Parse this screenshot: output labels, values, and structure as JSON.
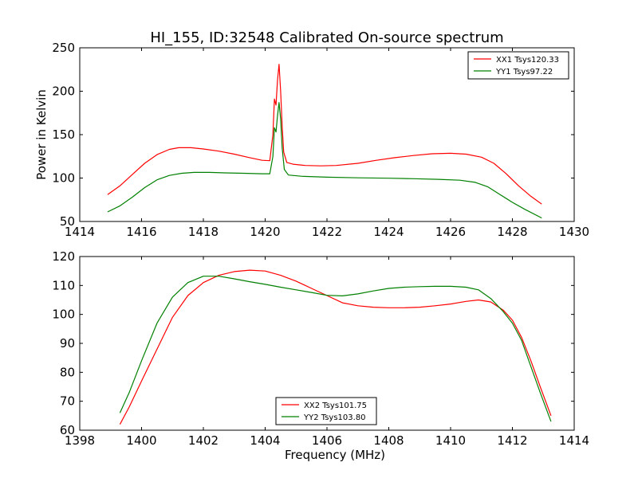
{
  "title": "HI_155, ID:32548 Calibrated On-source spectrum",
  "chart_data": [
    {
      "type": "line",
      "title": "HI_155, ID:32548 Calibrated On-source spectrum",
      "xlabel": "",
      "ylabel": "Power in Kelvin",
      "xlim": [
        1414,
        1430
      ],
      "ylim": [
        50,
        250
      ],
      "xticks": [
        1414,
        1416,
        1418,
        1420,
        1422,
        1424,
        1426,
        1428,
        1430
      ],
      "yticks": [
        50,
        100,
        150,
        200,
        250
      ],
      "legend_position": "top-right",
      "grid": false,
      "series": [
        {
          "name": "XX1 Tsys120.33",
          "color": "#ff0000",
          "points": [
            [
              1414.9,
              81
            ],
            [
              1415.3,
              91
            ],
            [
              1415.7,
              104
            ],
            [
              1416.1,
              117
            ],
            [
              1416.5,
              127
            ],
            [
              1416.9,
              133
            ],
            [
              1417.2,
              135
            ],
            [
              1417.6,
              135
            ],
            [
              1418.0,
              133.5
            ],
            [
              1418.5,
              131
            ],
            [
              1419.0,
              127.5
            ],
            [
              1419.5,
              123.5
            ],
            [
              1419.9,
              120.5
            ],
            [
              1420.15,
              120
            ],
            [
              1420.25,
              150
            ],
            [
              1420.3,
              191
            ],
            [
              1420.35,
              184
            ],
            [
              1420.4,
              213
            ],
            [
              1420.45,
              231
            ],
            [
              1420.5,
              200
            ],
            [
              1420.55,
              160
            ],
            [
              1420.6,
              130
            ],
            [
              1420.7,
              118
            ],
            [
              1420.9,
              116
            ],
            [
              1421.3,
              114.5
            ],
            [
              1421.8,
              114
            ],
            [
              1422.3,
              114.5
            ],
            [
              1423.0,
              117
            ],
            [
              1423.6,
              120.5
            ],
            [
              1424.2,
              123.5
            ],
            [
              1424.8,
              126
            ],
            [
              1425.4,
              128
            ],
            [
              1426.0,
              128.5
            ],
            [
              1426.5,
              127.5
            ],
            [
              1427.0,
              124
            ],
            [
              1427.4,
              117
            ],
            [
              1427.8,
              105
            ],
            [
              1428.2,
              91
            ],
            [
              1428.6,
              79
            ],
            [
              1428.95,
              70
            ]
          ]
        },
        {
          "name": "YY1 Tsys97.22",
          "color": "#008000",
          "points": [
            [
              1414.9,
              61
            ],
            [
              1415.3,
              68
            ],
            [
              1415.7,
              78
            ],
            [
              1416.1,
              89
            ],
            [
              1416.5,
              98
            ],
            [
              1416.9,
              103
            ],
            [
              1417.3,
              105.5
            ],
            [
              1417.7,
              106.5
            ],
            [
              1418.2,
              106.5
            ],
            [
              1418.7,
              106
            ],
            [
              1419.3,
              105.5
            ],
            [
              1419.9,
              105
            ],
            [
              1420.15,
              105
            ],
            [
              1420.25,
              125
            ],
            [
              1420.3,
              158
            ],
            [
              1420.35,
              153
            ],
            [
              1420.4,
              172
            ],
            [
              1420.45,
              187
            ],
            [
              1420.5,
              168
            ],
            [
              1420.55,
              135
            ],
            [
              1420.62,
              110
            ],
            [
              1420.75,
              103.5
            ],
            [
              1421.2,
              102
            ],
            [
              1422.0,
              101
            ],
            [
              1423.0,
              100.3
            ],
            [
              1424.0,
              99.8
            ],
            [
              1424.8,
              99.3
            ],
            [
              1425.6,
              98.5
            ],
            [
              1426.3,
              97.5
            ],
            [
              1426.8,
              95
            ],
            [
              1427.2,
              90
            ],
            [
              1427.6,
              81
            ],
            [
              1428.0,
              72
            ],
            [
              1428.4,
              64
            ],
            [
              1428.95,
              54
            ]
          ]
        }
      ]
    },
    {
      "type": "line",
      "title": "",
      "xlabel": "Frequency (MHz)",
      "ylabel": "",
      "xlim": [
        1398,
        1414
      ],
      "ylim": [
        60,
        120
      ],
      "xticks": [
        1398,
        1400,
        1402,
        1404,
        1406,
        1408,
        1410,
        1412,
        1414
      ],
      "yticks": [
        60,
        70,
        80,
        90,
        100,
        110,
        120
      ],
      "legend_position": "bottom-center",
      "grid": false,
      "series": [
        {
          "name": "XX2 Tsys101.75",
          "color": "#ff0000",
          "points": [
            [
              1399.3,
              62
            ],
            [
              1399.6,
              68
            ],
            [
              1400.0,
              77
            ],
            [
              1400.5,
              88
            ],
            [
              1401.0,
              99
            ],
            [
              1401.5,
              106.5
            ],
            [
              1402.0,
              111
            ],
            [
              1402.5,
              113.5
            ],
            [
              1403.0,
              114.8
            ],
            [
              1403.5,
              115.3
            ],
            [
              1404.0,
              115
            ],
            [
              1404.5,
              113.5
            ],
            [
              1405.0,
              111.5
            ],
            [
              1405.5,
              109
            ],
            [
              1406.0,
              106.5
            ],
            [
              1406.5,
              104
            ],
            [
              1407.0,
              103
            ],
            [
              1407.5,
              102.5
            ],
            [
              1408.0,
              102.3
            ],
            [
              1408.5,
              102.3
            ],
            [
              1409.0,
              102.5
            ],
            [
              1409.5,
              103
            ],
            [
              1410.0,
              103.6
            ],
            [
              1410.5,
              104.5
            ],
            [
              1410.9,
              105
            ],
            [
              1411.3,
              104.3
            ],
            [
              1411.7,
              101.5
            ],
            [
              1412.0,
              98
            ],
            [
              1412.3,
              92
            ],
            [
              1412.6,
              84
            ],
            [
              1412.9,
              75
            ],
            [
              1413.25,
              65
            ]
          ]
        },
        {
          "name": "YY2 Tsys103.80",
          "color": "#008000",
          "points": [
            [
              1399.3,
              66
            ],
            [
              1399.6,
              73
            ],
            [
              1400.0,
              84
            ],
            [
              1400.5,
              97
            ],
            [
              1401.0,
              106
            ],
            [
              1401.5,
              111
            ],
            [
              1402.0,
              113.2
            ],
            [
              1402.5,
              113.2
            ],
            [
              1403.0,
              112.3
            ],
            [
              1403.5,
              111.3
            ],
            [
              1404.0,
              110.4
            ],
            [
              1404.5,
              109.4
            ],
            [
              1405.0,
              108.5
            ],
            [
              1405.5,
              107.6
            ],
            [
              1406.0,
              106.6
            ],
            [
              1406.5,
              106.4
            ],
            [
              1407.0,
              107.1
            ],
            [
              1407.5,
              108.1
            ],
            [
              1408.0,
              109
            ],
            [
              1408.5,
              109.4
            ],
            [
              1409.0,
              109.6
            ],
            [
              1409.5,
              109.7
            ],
            [
              1410.0,
              109.7
            ],
            [
              1410.5,
              109.4
            ],
            [
              1410.9,
              108.5
            ],
            [
              1411.3,
              105.5
            ],
            [
              1411.7,
              101
            ],
            [
              1412.0,
              97
            ],
            [
              1412.3,
              91
            ],
            [
              1412.6,
              82
            ],
            [
              1412.9,
              73
            ],
            [
              1413.25,
              63
            ]
          ]
        }
      ]
    }
  ]
}
